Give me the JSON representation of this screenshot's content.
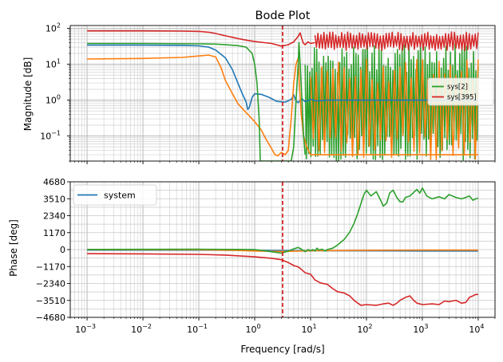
{
  "chart_data": [
    {
      "type": "line",
      "title": "Bode Plot",
      "xlabel": "",
      "ylabel": "Magnitude [dB]",
      "xscale": "log",
      "yscale": "log",
      "xlim": [
        0.0005,
        20000
      ],
      "ylim": [
        0.02,
        120
      ],
      "xticks": [
        {
          "v": 0.001,
          "mant": "10",
          "exp": "−3"
        },
        {
          "v": 0.01,
          "mant": "10",
          "exp": "−2"
        },
        {
          "v": 0.1,
          "mant": "10",
          "exp": "−1"
        },
        {
          "v": 1,
          "mant": "10",
          "exp": "0"
        },
        {
          "v": 10,
          "mant": "10",
          "exp": "1"
        },
        {
          "v": 100,
          "mant": "10",
          "exp": "2"
        },
        {
          "v": 1000,
          "mant": "10",
          "exp": "3"
        },
        {
          "v": 10000,
          "mant": "10",
          "exp": "4"
        }
      ],
      "show_xtick_labels": false,
      "yticks": [
        {
          "v": 0.1,
          "mant": "10",
          "exp": "−1"
        },
        {
          "v": 1,
          "mant": "10",
          "exp": "0"
        },
        {
          "v": 10,
          "mant": "10",
          "exp": "1"
        },
        {
          "v": 100,
          "mant": "10",
          "exp": "2"
        }
      ],
      "grid": true,
      "vline": {
        "x": 3.16,
        "color": "#d62728"
      },
      "legend": {
        "placement": "center-right",
        "entries": [
          {
            "label": "sys[2]",
            "color": "#2ca02c"
          },
          {
            "label": "sys[395]",
            "color": "#d62728"
          }
        ]
      },
      "series": [
        {
          "color": "#1f77b4",
          "x": [
            0.001,
            0.01,
            0.05,
            0.1,
            0.15,
            0.2,
            0.3,
            0.4,
            0.5,
            0.6,
            0.7,
            0.75,
            0.8,
            0.9,
            1,
            1.3,
            1.8,
            2.5,
            3.5,
            4.5,
            5,
            5.5,
            6,
            7,
            8,
            10,
            13,
            20,
            50,
            100,
            1000,
            10000
          ],
          "y": [
            34,
            34,
            33.5,
            32.5,
            30,
            25,
            15,
            7,
            3,
            1.5,
            0.9,
            0.55,
            0.62,
            1.2,
            1.5,
            1.45,
            1.2,
            0.92,
            0.88,
            1.05,
            1.4,
            0.95,
            0.85,
            1.1,
            0.9,
            1.05,
            0.95,
            1.0,
            1.0,
            1.0,
            1.0,
            1.0
          ]
        },
        {
          "color": "#ff7f0e",
          "x": [
            0.001,
            0.01,
            0.05,
            0.1,
            0.15,
            0.2,
            0.25,
            0.3,
            0.4,
            0.5,
            0.7,
            0.9,
            1,
            1.3,
            1.6,
            2,
            2.3,
            2.6,
            3,
            3.5,
            4,
            4.5,
            5,
            5.5,
            6,
            6.3,
            6.8,
            7.5,
            8.5,
            10,
            20,
            100,
            1000,
            10000
          ],
          "y": [
            14,
            14.5,
            15.5,
            17,
            18,
            16,
            8,
            3.5,
            1.5,
            0.8,
            0.45,
            0.3,
            0.25,
            0.15,
            0.08,
            0.045,
            0.03,
            0.028,
            0.035,
            0.03,
            0.04,
            0.3,
            3,
            10,
            15,
            3,
            0.4,
            0.1,
            0.05,
            0.03,
            0.03,
            0.03,
            0.03,
            0.03
          ]
        },
        {
          "color": "#2ca02c",
          "x": [
            0.001,
            0.01,
            0.1,
            0.2,
            0.3,
            0.5,
            0.7,
            0.9,
            1.0,
            1.1,
            1.2,
            1.26,
            4.5,
            5,
            5.5,
            6,
            6.2,
            6.5,
            7,
            7.5,
            8
          ],
          "y": [
            38,
            38,
            37,
            36.5,
            35,
            33,
            30,
            20,
            10,
            3,
            0.3,
            0.02,
            0.02,
            0.05,
            1,
            10,
            40,
            10,
            1,
            0.1,
            0.03
          ]
        },
        {
          "color": "#d62728",
          "x": [
            0.001,
            0.01,
            0.05,
            0.1,
            0.15,
            0.2,
            0.3,
            0.5,
            0.7,
            1,
            1.5,
            2,
            3,
            4,
            5,
            6,
            6.5,
            7,
            7.5,
            8,
            9,
            10,
            12
          ],
          "y": [
            85,
            85,
            84,
            82,
            78,
            72,
            62,
            52,
            47,
            43,
            40,
            38,
            32,
            35,
            42,
            60,
            75,
            50,
            38,
            35,
            42,
            38,
            40
          ]
        }
      ],
      "noisy_series": [
        {
          "color": "#2ca02c",
          "x_start": 8,
          "x_end": 10000,
          "low": 0.02,
          "high": 38,
          "count": 150
        },
        {
          "color": "#ff7f0e",
          "x_start": 10,
          "x_end": 10000,
          "low": 0.02,
          "high": 14,
          "count": 60
        },
        {
          "color": "#d62728",
          "x_start": 12,
          "x_end": 10000,
          "low": 24,
          "high": 80,
          "count": 110
        }
      ]
    },
    {
      "type": "line",
      "title": "",
      "xlabel": "Frequency [rad/s]",
      "ylabel": "Phase [deg]",
      "xscale": "log",
      "yscale": "linear",
      "xlim": [
        0.0005,
        20000
      ],
      "ylim": [
        -4680,
        4680
      ],
      "xticks": [
        {
          "v": 0.001,
          "mant": "10",
          "exp": "−3"
        },
        {
          "v": 0.01,
          "mant": "10",
          "exp": "−2"
        },
        {
          "v": 0.1,
          "mant": "10",
          "exp": "−1"
        },
        {
          "v": 1,
          "mant": "10",
          "exp": "0"
        },
        {
          "v": 10,
          "mant": "10",
          "exp": "1"
        },
        {
          "v": 100,
          "mant": "10",
          "exp": "2"
        },
        {
          "v": 1000,
          "mant": "10",
          "exp": "3"
        },
        {
          "v": 10000,
          "mant": "10",
          "exp": "4"
        }
      ],
      "show_xtick_labels": true,
      "yticks": [
        {
          "v": 4680,
          "label": "4680"
        },
        {
          "v": 3510,
          "label": "3510"
        },
        {
          "v": 2340,
          "label": "2340"
        },
        {
          "v": 1170,
          "label": "1170"
        },
        {
          "v": 0,
          "label": "0"
        },
        {
          "v": -1170,
          "label": "−1170"
        },
        {
          "v": -2340,
          "label": "−2340"
        },
        {
          "v": -3510,
          "label": "−3510"
        },
        {
          "v": -4680,
          "label": "−4680"
        }
      ],
      "grid": true,
      "vline": {
        "x": 3.16,
        "color": "#d62728"
      },
      "legend": {
        "placement": "top-left",
        "entries": [
          {
            "label": "system",
            "color": "#1f77b4"
          }
        ]
      },
      "series": [
        {
          "color": "#1f77b4",
          "x": [
            0.001,
            0.1,
            0.5,
            1,
            3,
            10,
            100,
            1000,
            10000
          ],
          "y": [
            -40,
            -40,
            -50,
            -60,
            -70,
            -80,
            -90,
            -100,
            -100
          ]
        },
        {
          "color": "#ff7f0e",
          "x": [
            0.001,
            0.1,
            0.5,
            1,
            3,
            10,
            100,
            1000,
            10000
          ],
          "y": [
            0,
            -10,
            -60,
            -100,
            -130,
            -80,
            -50,
            -40,
            -40
          ]
        },
        {
          "color": "#2ca02c",
          "x": [
            0.001,
            0.1,
            0.5,
            1,
            2,
            3,
            4,
            5,
            6,
            7,
            8,
            9,
            10,
            11,
            12,
            13,
            14,
            15,
            16,
            18,
            20,
            25,
            30,
            40,
            50,
            60,
            70,
            80,
            90,
            100,
            120,
            150,
            180,
            200,
            230,
            260,
            300,
            350,
            400,
            450,
            500,
            600,
            700,
            800,
            900,
            1000,
            1200,
            1500,
            2000,
            2500,
            3000,
            4000,
            5000,
            6000,
            7000,
            8000,
            9000,
            10000
          ],
          "y": [
            10,
            20,
            10,
            0,
            -150,
            -250,
            -100,
            50,
            150,
            0,
            -150,
            0,
            -80,
            0,
            -100,
            100,
            -20,
            0,
            30,
            -100,
            0,
            100,
            300,
            700,
            1200,
            1800,
            2500,
            3200,
            3800,
            4100,
            3700,
            4000,
            3400,
            3000,
            3200,
            3900,
            4100,
            3600,
            3300,
            3300,
            3600,
            3700,
            3950,
            4150,
            3900,
            4250,
            3700,
            3500,
            3650,
            3500,
            3800,
            3600,
            3500,
            3600,
            3700,
            3400,
            3500,
            3550
          ]
        },
        {
          "color": "#d62728",
          "x": [
            0.001,
            0.01,
            0.1,
            0.3,
            1,
            2,
            3,
            4,
            5,
            6,
            7,
            8,
            10,
            12,
            15,
            20,
            25,
            30,
            40,
            50,
            60,
            70,
            80,
            100,
            150,
            200,
            250,
            300,
            350,
            400,
            500,
            600,
            700,
            800,
            1000,
            1500,
            2000,
            2500,
            3000,
            4000,
            5000,
            6000,
            7000,
            8000,
            9000,
            10000
          ],
          "y": [
            -280,
            -300,
            -330,
            -380,
            -500,
            -600,
            -700,
            -900,
            -1100,
            -1200,
            -1400,
            -1600,
            -1700,
            -2100,
            -2300,
            -2400,
            -2700,
            -2900,
            -3000,
            -3200,
            -3500,
            -3700,
            -3850,
            -3800,
            -3850,
            -3750,
            -3700,
            -3850,
            -3700,
            -3500,
            -3300,
            -3200,
            -3500,
            -3700,
            -3800,
            -3750,
            -3800,
            -3550,
            -3600,
            -3500,
            -3700,
            -3650,
            -3300,
            -3200,
            -3100,
            -3100
          ]
        }
      ]
    }
  ]
}
